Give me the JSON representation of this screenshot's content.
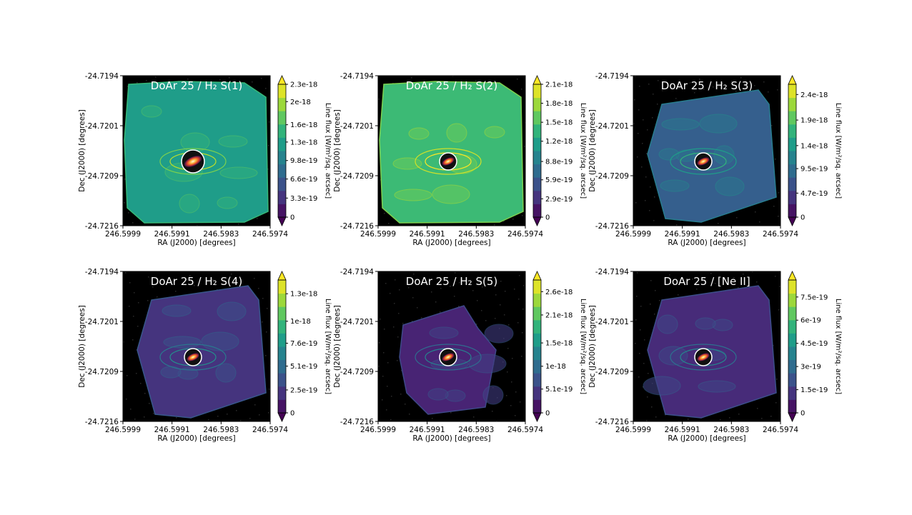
{
  "figure": {
    "xlabel": "RA (J2000) [degrees]",
    "ylabel": "Dec (J2000) [degrees]",
    "cbar_label": "Line flux [W/m²/sq. arcsec]",
    "colormap": "viridis",
    "background_color": "#000000"
  },
  "chart_data": [
    {
      "type": "heatmap",
      "title": "DoAr 25 / H₂ S(1)",
      "xticks": [
        "246.5999",
        "246.5991",
        "246.5983",
        "246.5974"
      ],
      "yticks": [
        "-24.7194",
        "-24.7201",
        "-24.7209",
        "-24.7216"
      ],
      "xlim": [
        246.5999,
        246.5974
      ],
      "ylim": [
        -24.7216,
        -24.7194
      ],
      "colorbar": {
        "ticks": [
          "0",
          "3.3e-19",
          "6.6e-19",
          "9.8e-19",
          "1.3e-18",
          "1.6e-18",
          "2e-18",
          "2.3e-18"
        ],
        "min": 0,
        "max": 2.3e-18,
        "extend": "both"
      },
      "map_level": 0.55,
      "map_shape": "square",
      "source_size": "large"
    },
    {
      "type": "heatmap",
      "title": "DoAr 25 / H₂ S(2)",
      "xticks": [
        "246.5999",
        "246.5991",
        "246.5983",
        "246.5974"
      ],
      "yticks": [
        "-24.7194",
        "-24.7201",
        "-24.7209",
        "-24.7216"
      ],
      "xlim": [
        246.5999,
        246.5974
      ],
      "ylim": [
        -24.7216,
        -24.7194
      ],
      "colorbar": {
        "ticks": [
          "0",
          "2.9e-19",
          "5.9e-19",
          "8.8e-19",
          "1.2e-18",
          "1.5e-18",
          "1.8e-18",
          "2.1e-18"
        ],
        "min": 0,
        "max": 2.1e-18,
        "extend": "both"
      },
      "map_level": 0.68,
      "map_shape": "square",
      "source_size": "small"
    },
    {
      "type": "heatmap",
      "title": "DoAr 25 / H₂ S(3)",
      "xticks": [
        "246.5999",
        "246.5991",
        "246.5983",
        "246.5974"
      ],
      "yticks": [
        "-24.7194",
        "-24.7201",
        "-24.7209",
        "-24.7216"
      ],
      "xlim": [
        246.5999,
        246.5974
      ],
      "ylim": [
        -24.7216,
        -24.7194
      ],
      "colorbar": {
        "ticks": [
          "0",
          "4.7e-19",
          "9.5e-19",
          "1.4e-18",
          "1.9e-18",
          "2.4e-18"
        ],
        "min": 0,
        "max": 2.6e-18,
        "extend": "both"
      },
      "map_level": 0.3,
      "map_shape": "tilted",
      "source_size": "small"
    },
    {
      "type": "heatmap",
      "title": "DoAr 25 / H₂ S(4)",
      "xticks": [
        "246.5999",
        "246.5991",
        "246.5983",
        "246.5974"
      ],
      "yticks": [
        "-24.7194",
        "-24.7201",
        "-24.7209",
        "-24.7216"
      ],
      "xlim": [
        246.5999,
        246.5974
      ],
      "ylim": [
        -24.7216,
        -24.7194
      ],
      "colorbar": {
        "ticks": [
          "0",
          "2.5e-19",
          "5.1e-19",
          "7.6e-19",
          "1e-18",
          "1.3e-18"
        ],
        "min": 0,
        "max": 1.45e-18,
        "extend": "both"
      },
      "map_level": 0.15,
      "map_shape": "tilted",
      "source_size": "small"
    },
    {
      "type": "heatmap",
      "title": "DoAr 25 / H₂ S(5)",
      "xticks": [
        "246.5999",
        "246.5991",
        "246.5983",
        "246.5974"
      ],
      "yticks": [
        "-24.7194",
        "-24.7201",
        "-24.7209",
        "-24.7216"
      ],
      "xlim": [
        246.5999,
        246.5974
      ],
      "ylim": [
        -24.7216,
        -24.7194
      ],
      "colorbar": {
        "ticks": [
          "0",
          "5.1e-19",
          "1e-18",
          "1.5e-18",
          "2.1e-18",
          "2.6e-18"
        ],
        "min": 0,
        "max": 2.85e-18,
        "extend": "both"
      },
      "map_level": 0.1,
      "map_shape": "tilted-small",
      "source_size": "small"
    },
    {
      "type": "heatmap",
      "title": "DoAr 25 / [Ne II]",
      "xticks": [
        "246.5999",
        "246.5991",
        "246.5983",
        "246.5974"
      ],
      "yticks": [
        "-24.7194",
        "-24.7201",
        "-24.7209",
        "-24.7216"
      ],
      "xlim": [
        246.5999,
        246.5974
      ],
      "ylim": [
        -24.7216,
        -24.7194
      ],
      "colorbar": {
        "ticks": [
          "0",
          "1.5e-19",
          "3e-19",
          "4.5e-19",
          "6e-19",
          "7.5e-19"
        ],
        "min": 0,
        "max": 8.6e-19,
        "extend": "both"
      },
      "map_level": 0.12,
      "map_shape": "tilted",
      "source_size": "small"
    }
  ]
}
